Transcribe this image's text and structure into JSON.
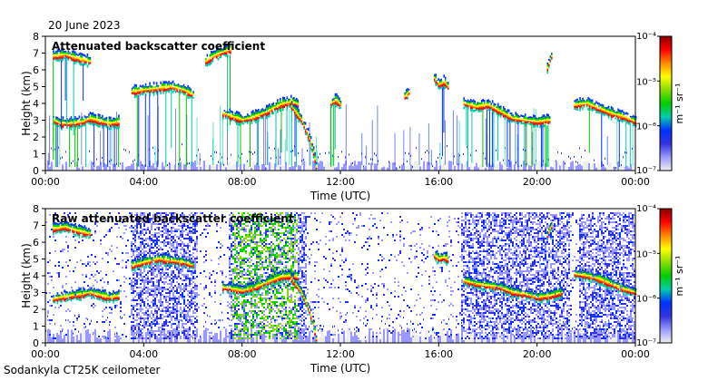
{
  "date": "20 June 2023",
  "footer": "Sodankyla CT25K ceilometer",
  "colors": {
    "colormap": [
      "#eeeeee",
      "#9999ff",
      "#3333dd",
      "#0033ff",
      "#00ccaa",
      "#00cc00",
      "#88dd00",
      "#ffff00",
      "#ff8800",
      "#ff0000",
      "#880000"
    ],
    "background": "#ffffff",
    "axis": "#000000"
  },
  "chart_data": [
    {
      "type": "heatmap",
      "title": "Attenuated backscatter coefficient",
      "xlabel": "Time (UTC)",
      "ylabel": "Height (km)",
      "xlim": [
        0,
        24
      ],
      "ylim": [
        0,
        8
      ],
      "x_tick_labels": [
        "00:00",
        "04:00",
        "08:00",
        "12:00",
        "16:00",
        "20:00",
        "00:00"
      ],
      "y_tick_labels": [
        "0",
        "1",
        "2",
        "3",
        "4",
        "5",
        "6",
        "7",
        "8"
      ],
      "colorbar": {
        "label": "m⁻¹ sr⁻¹",
        "scale": "log",
        "range": [
          1e-07,
          0.0001
        ],
        "tick_labels": [
          "10⁻⁴",
          "10⁻⁵",
          "10⁻⁶",
          "10⁻⁷"
        ]
      },
      "layers": [
        {
          "t": [
            0.3,
            0.6,
            1.0,
            1.5,
            1.8,
            2.3,
            2.6,
            3.0
          ],
          "h": [
            3.0,
            2.8,
            2.8,
            2.9,
            3.1,
            2.9,
            2.8,
            2.9
          ]
        },
        {
          "t": [
            0.3,
            0.8,
            1.2,
            1.8
          ],
          "h": [
            6.8,
            6.9,
            6.7,
            6.5
          ]
        },
        {
          "t": [
            3.5,
            4.0,
            4.6,
            5.1,
            5.6,
            6.0
          ],
          "h": [
            4.7,
            4.8,
            4.9,
            5.0,
            4.8,
            4.5
          ]
        },
        {
          "t": [
            6.5,
            6.8,
            7.1,
            7.5
          ],
          "h": [
            6.5,
            6.8,
            7.0,
            7.2
          ]
        },
        {
          "t": [
            7.2,
            7.6,
            8.0,
            8.5,
            9.0,
            9.5,
            10.0,
            10.3
          ],
          "h": [
            3.4,
            3.2,
            3.0,
            3.2,
            3.5,
            3.9,
            4.1,
            3.9
          ]
        },
        {
          "t": [
            10.0,
            10.4,
            10.7,
            10.9,
            11.0
          ],
          "h": [
            3.8,
            3.0,
            2.0,
            1.0,
            0.2
          ]
        },
        {
          "t": [
            11.6,
            11.8,
            12.0
          ],
          "h": [
            4.0,
            4.2,
            3.9
          ]
        },
        {
          "t": [
            14.6,
            14.8
          ],
          "h": [
            4.4,
            4.7
          ]
        },
        {
          "t": [
            15.8,
            16.0,
            16.2,
            16.4
          ],
          "h": [
            5.5,
            5.1,
            5.3,
            4.9
          ]
        },
        {
          "t": [
            17.0,
            17.5,
            18.0,
            18.5,
            19.0,
            19.5,
            20.0,
            20.5
          ],
          "h": [
            4.0,
            3.8,
            3.9,
            3.5,
            3.1,
            3.0,
            2.9,
            3.0
          ]
        },
        {
          "t": [
            20.4,
            20.5,
            20.6
          ],
          "h": [
            6.1,
            6.6,
            6.9
          ]
        },
        {
          "t": [
            21.5,
            22.0,
            22.5,
            23.0,
            23.5,
            24.0
          ],
          "h": [
            3.9,
            4.0,
            3.7,
            3.4,
            3.2,
            2.9
          ]
        }
      ]
    },
    {
      "type": "heatmap",
      "title": "Raw attenuated backscatter coefficient",
      "xlabel": "Time (UTC)",
      "ylabel": "Height (km)",
      "xlim": [
        0,
        24
      ],
      "ylim": [
        0,
        8
      ],
      "x_tick_labels": [
        "00:00",
        "04:00",
        "08:00",
        "12:00",
        "16:00",
        "20:00",
        "00:00"
      ],
      "y_tick_labels": [
        "0",
        "1",
        "2",
        "3",
        "4",
        "5",
        "6",
        "7",
        "8"
      ],
      "colorbar": {
        "label": "m⁻¹ sr⁻¹",
        "scale": "log",
        "range": [
          1e-07,
          0.0001
        ],
        "tick_labels": [
          "10⁻⁴",
          "10⁻⁵",
          "10⁻⁶",
          "10⁻⁷"
        ]
      },
      "layers": [
        {
          "t": [
            0.3,
            0.6,
            1.0,
            1.5,
            1.8,
            2.3,
            2.6,
            3.0
          ],
          "h": [
            2.6,
            2.7,
            2.8,
            2.9,
            3.0,
            2.8,
            2.7,
            2.8
          ]
        },
        {
          "t": [
            0.3,
            0.8,
            1.2,
            1.8
          ],
          "h": [
            6.8,
            6.9,
            6.7,
            6.5
          ]
        },
        {
          "t": [
            3.5,
            4.0,
            4.6,
            5.1,
            5.6,
            6.0
          ],
          "h": [
            4.6,
            4.8,
            5.0,
            4.9,
            4.8,
            4.6
          ]
        },
        {
          "t": [
            7.2,
            7.6,
            8.0,
            8.5,
            9.0,
            9.5,
            10.0,
            10.3
          ],
          "h": [
            3.3,
            3.2,
            3.1,
            3.3,
            3.6,
            3.9,
            4.0,
            3.9
          ]
        },
        {
          "t": [
            10.0,
            10.4,
            10.7,
            10.9,
            11.0
          ],
          "h": [
            3.8,
            3.0,
            2.0,
            1.0,
            0.2
          ]
        },
        {
          "t": [
            15.8,
            16.0,
            16.2,
            16.4
          ],
          "h": [
            5.2,
            5.0,
            5.1,
            4.9
          ]
        },
        {
          "t": [
            17.0,
            17.5,
            18.0,
            18.5,
            19.0,
            19.5,
            20.0,
            20.5,
            21.0
          ],
          "h": [
            3.7,
            3.5,
            3.4,
            3.3,
            3.0,
            2.9,
            2.7,
            2.8,
            3.0
          ]
        },
        {
          "t": [
            20.4,
            20.5,
            20.6
          ],
          "h": [
            6.4,
            6.8,
            7.0
          ]
        },
        {
          "t": [
            21.5,
            22.0,
            22.5,
            23.0,
            23.5,
            24.0
          ],
          "h": [
            4.1,
            4.0,
            3.8,
            3.5,
            3.2,
            3.0
          ]
        }
      ]
    }
  ]
}
